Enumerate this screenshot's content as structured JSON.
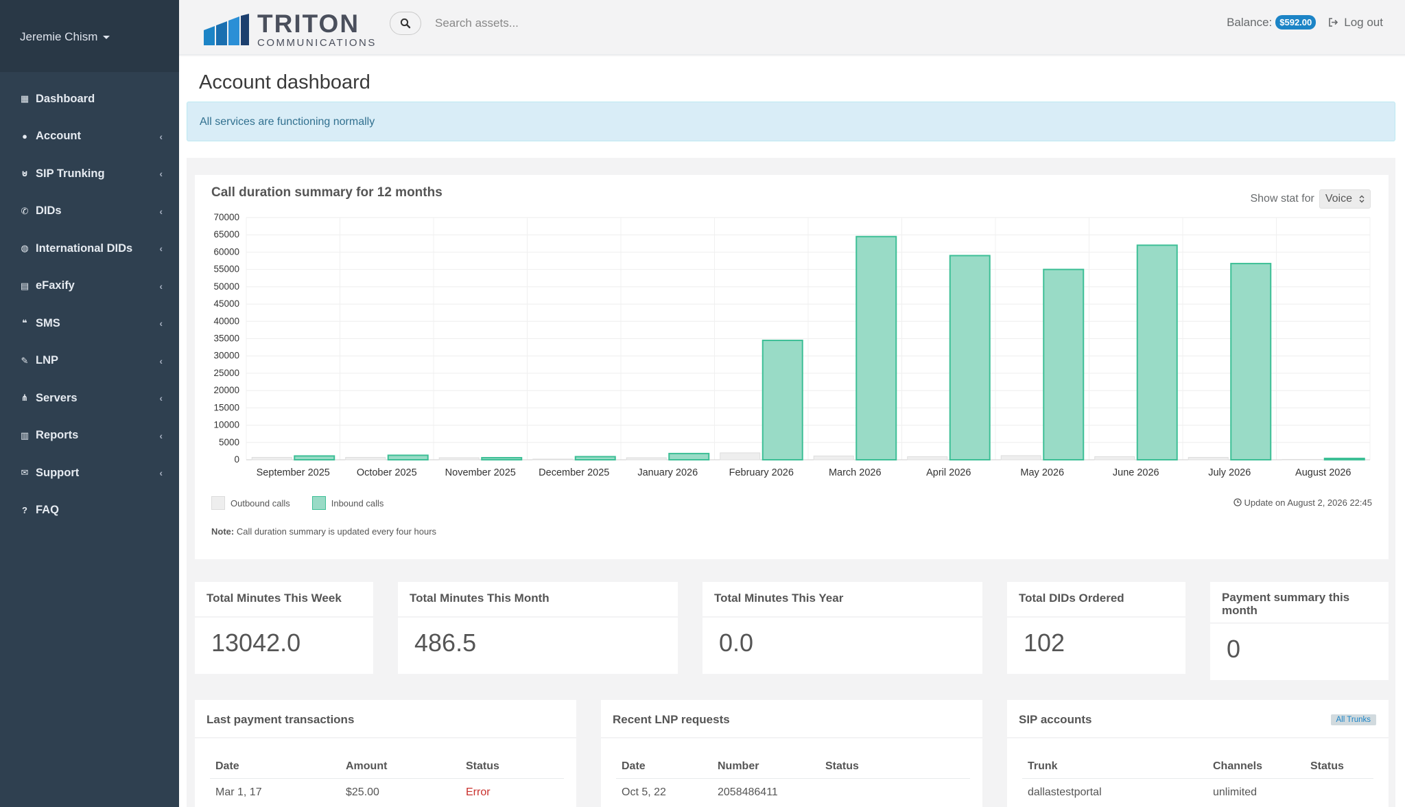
{
  "user": {
    "name": "Jeremie Chism"
  },
  "sidebar": {
    "items": [
      {
        "label": "Dashboard",
        "icon": "dashboard-icon",
        "has_children": false
      },
      {
        "label": "Account",
        "icon": "user-icon",
        "has_children": true
      },
      {
        "label": "SIP Trunking",
        "icon": "plug-icon",
        "has_children": true
      },
      {
        "label": "DIDs",
        "icon": "phone-icon",
        "has_children": true
      },
      {
        "label": "International DIDs",
        "icon": "globe-icon",
        "has_children": true
      },
      {
        "label": "eFaxify",
        "icon": "fax-icon",
        "has_children": true
      },
      {
        "label": "SMS",
        "icon": "comments-icon",
        "has_children": true
      },
      {
        "label": "LNP",
        "icon": "pencil-icon",
        "has_children": true
      },
      {
        "label": "Servers",
        "icon": "sitemap-icon",
        "has_children": true
      },
      {
        "label": "Reports",
        "icon": "bar-chart-icon",
        "has_children": true
      },
      {
        "label": "Support",
        "icon": "envelope-icon",
        "has_children": true
      },
      {
        "label": "FAQ",
        "icon": "question-icon",
        "has_children": false
      }
    ]
  },
  "header": {
    "logo_main": "TRITON",
    "logo_sub": "COMMUNICATIONS",
    "search_placeholder": "Search assets...",
    "balance_label": "Balance:",
    "balance_value": "$592.00",
    "logout_label": "Log out"
  },
  "page": {
    "title": "Account dashboard",
    "alert": "All services are functioning normally"
  },
  "chart_panel": {
    "title": "Call duration summary for 12 months",
    "show_stat_label": "Show stat for",
    "show_stat_value": "Voice",
    "update_text": "Update on August 2, 2026 22:45",
    "note_label": "Note:",
    "note_text": "Call duration summary is updated every four hours",
    "colors": {
      "outbound": "#eeeeee",
      "inbound": "#99dbc6",
      "inbound_border": "#3dbf96"
    }
  },
  "chart_data": {
    "type": "bar",
    "categories": [
      "September 2025",
      "October 2025",
      "November 2025",
      "December 2025",
      "January 2026",
      "February 2026",
      "March 2026",
      "April 2026",
      "May 2026",
      "June 2026",
      "July 2026",
      "August 2026"
    ],
    "series": [
      {
        "name": "Outbound calls",
        "values": [
          700,
          700,
          600,
          200,
          600,
          2000,
          1100,
          900,
          1200,
          900,
          700,
          100
        ]
      },
      {
        "name": "Inbound calls",
        "values": [
          1100,
          1300,
          600,
          900,
          1800,
          34500,
          64500,
          59000,
          55000,
          62000,
          56700,
          400
        ]
      }
    ],
    "yticks": [
      0,
      5000,
      10000,
      15000,
      20000,
      25000,
      30000,
      35000,
      40000,
      45000,
      50000,
      55000,
      60000,
      65000,
      70000
    ],
    "ylim": [
      0,
      70000
    ],
    "grid": true,
    "legend": "bottom-left"
  },
  "stats": [
    {
      "label": "Total Minutes This Week",
      "value": "13042.0"
    },
    {
      "label": "Total Minutes This Month",
      "value": "486.5"
    },
    {
      "label": "Total Minutes This Year",
      "value": "0.0"
    },
    {
      "label": "Total DIDs Ordered",
      "value": "102"
    },
    {
      "label": "Payment summary this month",
      "value": "0"
    }
  ],
  "payments": {
    "title": "Last payment transactions",
    "headers": [
      "Date",
      "Amount",
      "Status"
    ],
    "rows": [
      [
        "Mar 1, 17",
        "$25.00",
        "Error"
      ]
    ]
  },
  "lnp": {
    "title": "Recent LNP requests",
    "headers": [
      "Date",
      "Number",
      "Status"
    ],
    "rows": [
      [
        "Oct 5, 22",
        "2058486411",
        ""
      ]
    ]
  },
  "sip": {
    "title": "SIP accounts",
    "badge": "All Trunks",
    "headers": [
      "Trunk",
      "Channels",
      "Status"
    ],
    "rows": [
      [
        "dallastestportal",
        "unlimited",
        ""
      ]
    ]
  }
}
